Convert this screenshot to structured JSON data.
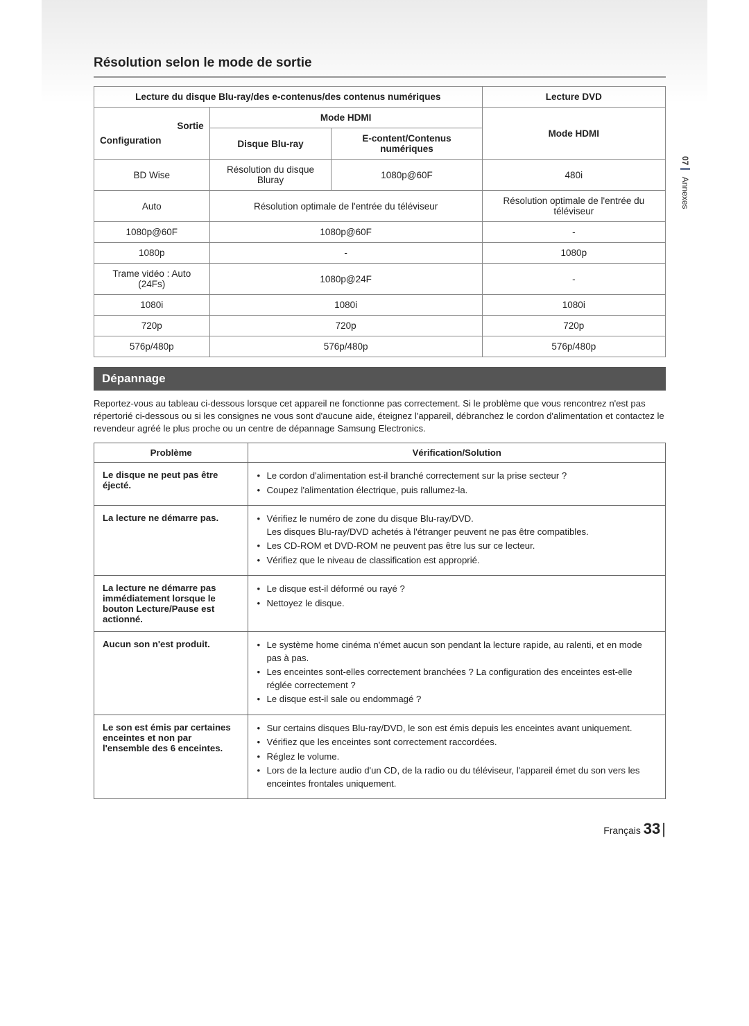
{
  "side_tab": {
    "num": "07",
    "label": "Annexes"
  },
  "section1": {
    "title": "Résolution selon le mode de sortie",
    "table": {
      "header_row1": {
        "col1": "Lecture du disque Blu-ray/des e-contenus/des contenus numériques",
        "col2": "Lecture DVD"
      },
      "header_row2": {
        "sortie": "Sortie",
        "config": "Configuration",
        "mode_hdmi_left": "Mode HDMI",
        "mode_hdmi_right": "Mode HDMI",
        "bluray": "Disque Blu-ray",
        "econtent": "E-content/Contenus numériques"
      },
      "rows": [
        {
          "label": "BD Wise",
          "c1": "Résolution du disque Bluray",
          "c2": "1080p@60F",
          "c3": "480i",
          "span12": false
        },
        {
          "label": "Auto",
          "c12": "Résolution optimale de l'entrée du téléviseur",
          "c3": "Résolution optimale de l'entrée du téléviseur",
          "span12": true
        },
        {
          "label": "1080p@60F",
          "c12": "1080p@60F",
          "c3": "-",
          "span12": true
        },
        {
          "label": "1080p",
          "c12": "-",
          "c3": "1080p",
          "span12": true
        },
        {
          "label": "Trame vidéo : Auto (24Fs)",
          "c12": "1080p@24F",
          "c3": "-",
          "span12": true
        },
        {
          "label": "1080i",
          "c12": "1080i",
          "c3": "1080i",
          "span12": true
        },
        {
          "label": "720p",
          "c12": "720p",
          "c3": "720p",
          "span12": true
        },
        {
          "label": "576p/480p",
          "c12": "576p/480p",
          "c3": "576p/480p",
          "span12": true
        }
      ]
    }
  },
  "section2": {
    "title": "Dépannage",
    "intro": "Reportez-vous au tableau ci-dessous lorsque cet appareil ne fonctionne pas correctement. Si le problème que vous rencontrez n'est pas répertorié ci-dessous ou si les consignes ne vous sont d'aucune aide, éteignez l'appareil, débranchez le cordon d'alimentation et contactez le revendeur agréé le plus proche ou un centre de dépannage Samsung Electronics.",
    "headers": {
      "problem": "Problème",
      "solution": "Vérification/Solution"
    },
    "rows": [
      {
        "problem": "Le disque ne peut pas être éjecté.",
        "items": [
          "Le cordon d'alimentation est-il branché correctement sur la prise secteur ?",
          "Coupez l'alimentation électrique, puis rallumez-la."
        ]
      },
      {
        "problem": "La lecture ne démarre pas.",
        "items": [
          "Vérifiez le numéro de zone du disque Blu-ray/DVD.\nLes disques Blu-ray/DVD achetés à l'étranger peuvent ne pas être compatibles.",
          "Les CD-ROM et DVD-ROM ne peuvent pas être lus sur ce lecteur.",
          "Vérifiez que le niveau de classification est approprié."
        ]
      },
      {
        "problem": "La lecture ne démarre pas immédiatement lorsque le bouton Lecture/Pause est actionné.",
        "items": [
          "Le disque est-il déformé ou rayé ?",
          "Nettoyez le disque."
        ]
      },
      {
        "problem": "Aucun son n'est produit.",
        "items": [
          "Le système home cinéma n'émet aucun son pendant la lecture rapide, au ralenti, et en mode pas à pas.",
          "Les enceintes sont-elles correctement branchées ? La configuration des enceintes est-elle réglée correctement ?",
          "Le disque est-il sale ou endommagé ?"
        ]
      },
      {
        "problem": "Le son est émis par certaines enceintes et non par l'ensemble des 6 enceintes.",
        "items": [
          "Sur certains disques Blu-ray/DVD, le son est émis depuis les enceintes avant uniquement.",
          "Vérifiez que les enceintes sont correctement raccordées.",
          "Réglez le volume.",
          "Lors de la lecture audio d'un CD, de la radio ou du téléviseur, l'appareil émet du son vers les enceintes frontales uniquement."
        ]
      }
    ]
  },
  "footer": {
    "lang": "Français",
    "page": "33"
  }
}
